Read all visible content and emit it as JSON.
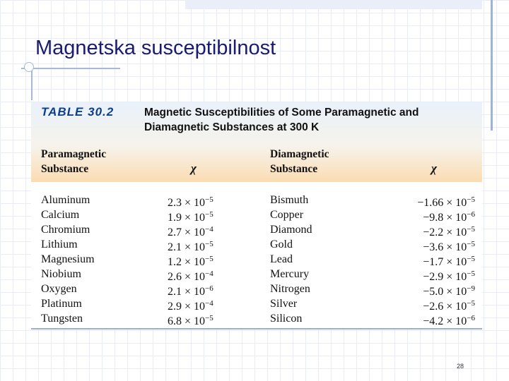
{
  "slide": {
    "title": "Magnetska susceptibilnost",
    "page_number": "28"
  },
  "table": {
    "label": "TABLE 30.2",
    "caption": "Magnetic Susceptibilities of Some Paramagnetic and Diamagnetic Substances at 300 K",
    "headers": {
      "paramagnetic_line1": "Paramagnetic",
      "paramagnetic_line2": "Substance",
      "chi": "χ",
      "diamagnetic_line1": "Diamagnetic",
      "diamagnetic_line2": "Substance",
      "chi2": "χ"
    },
    "rows": [
      {
        "p_name": "Aluminum",
        "p_mant": "2.3",
        "p_exp": "−5",
        "d_name": "Bismuth",
        "d_mant": "−1.66",
        "d_exp": "−5"
      },
      {
        "p_name": "Calcium",
        "p_mant": "1.9",
        "p_exp": "−5",
        "d_name": "Copper",
        "d_mant": "−9.8",
        "d_exp": "−6"
      },
      {
        "p_name": "Chromium",
        "p_mant": "2.7",
        "p_exp": "−4",
        "d_name": "Diamond",
        "d_mant": "−2.2",
        "d_exp": "−5"
      },
      {
        "p_name": "Lithium",
        "p_mant": "2.1",
        "p_exp": "−5",
        "d_name": "Gold",
        "d_mant": "−3.6",
        "d_exp": "−5"
      },
      {
        "p_name": "Magnesium",
        "p_mant": "1.2",
        "p_exp": "−5",
        "d_name": "Lead",
        "d_mant": "−1.7",
        "d_exp": "−5"
      },
      {
        "p_name": "Niobium",
        "p_mant": "2.6",
        "p_exp": "−4",
        "d_name": "Mercury",
        "d_mant": "−2.9",
        "d_exp": "−5"
      },
      {
        "p_name": "Oxygen",
        "p_mant": "2.1",
        "p_exp": "−6",
        "d_name": "Nitrogen",
        "d_mant": "−5.0",
        "d_exp": "−9"
      },
      {
        "p_name": "Platinum",
        "p_mant": "2.9",
        "p_exp": "−4",
        "d_name": "Silver",
        "d_mant": "−2.6",
        "d_exp": "−5"
      },
      {
        "p_name": "Tungsten",
        "p_mant": "6.8",
        "p_exp": "−5",
        "d_name": "Silicon",
        "d_mant": "−4.2",
        "d_exp": "−6"
      }
    ]
  }
}
